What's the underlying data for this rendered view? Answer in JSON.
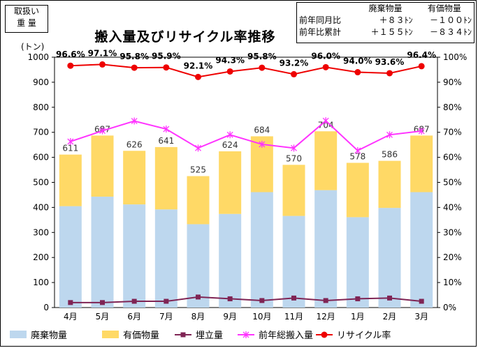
{
  "label_box": {
    "line1": "取扱い",
    "line2": "重 量"
  },
  "summary": {
    "col1": "廃棄物量",
    "col2": "有価物量",
    "row1_label": "前年同月比",
    "row1_v1": "＋８３ﾄﾝ",
    "row1_v2": "－１００ﾄﾝ",
    "row2_label": "前年比累計",
    "row2_v1": "＋１５５ﾄﾝ",
    "row2_v2": "－８３４ﾄﾝ"
  },
  "colors": {
    "waste": "#bdd7ee",
    "valuable": "#ffd966",
    "landfill": "#7f2454",
    "prev_total": "#ff33ff",
    "recycle": "#ee0000"
  },
  "chart_data": {
    "type": "bar",
    "title": "搬入量及びリサイクル率推移",
    "ylabel": "(トン)",
    "categories": [
      "4月",
      "5月",
      "6月",
      "7月",
      "8月",
      "9月",
      "10月",
      "11月",
      "12月",
      "1月",
      "2月",
      "3月"
    ],
    "ylim": [
      0,
      1000
    ],
    "yticks": [
      0,
      100,
      200,
      300,
      400,
      500,
      600,
      700,
      800,
      900,
      1000
    ],
    "y2lim": [
      0,
      100
    ],
    "y2ticks": [
      "0%",
      "10%",
      "20%",
      "30%",
      "40%",
      "50%",
      "60%",
      "70%",
      "80%",
      "90%",
      "100%"
    ],
    "totals": [
      611,
      687,
      626,
      641,
      525,
      624,
      684,
      570,
      704,
      578,
      586,
      687
    ],
    "series": [
      {
        "name": "廃棄物量",
        "kind": "bar",
        "values": [
          405,
          443,
          412,
          392,
          333,
          374,
          461,
          366,
          469,
          361,
          398,
          461
        ]
      },
      {
        "name": "有価物量",
        "kind": "bar",
        "values": [
          206,
          244,
          214,
          249,
          192,
          250,
          223,
          204,
          235,
          217,
          188,
          226
        ]
      },
      {
        "name": "埋立量",
        "kind": "line",
        "values": [
          20,
          20,
          25,
          25,
          42,
          35,
          28,
          38,
          28,
          35,
          38,
          25
        ]
      },
      {
        "name": "前年総搬入量",
        "kind": "line",
        "values": [
          663,
          706,
          745,
          713,
          637,
          690,
          652,
          637,
          746,
          627,
          690,
          705
        ]
      },
      {
        "name": "リサイクル率",
        "kind": "line",
        "axis": "right",
        "values": [
          96.6,
          97.1,
          95.8,
          95.9,
          92.1,
          94.3,
          95.8,
          93.2,
          96.0,
          94.0,
          93.6,
          96.4
        ]
      }
    ],
    "recycle_labels": [
      "96.6%",
      "97.1%",
      "95.8%",
      "95.9%",
      "92.1%",
      "94.3%",
      "95.8%",
      "93.2%",
      "96.0%",
      "94.0%",
      "93.6%",
      "96.4%"
    ],
    "legend_position": "bottom"
  }
}
